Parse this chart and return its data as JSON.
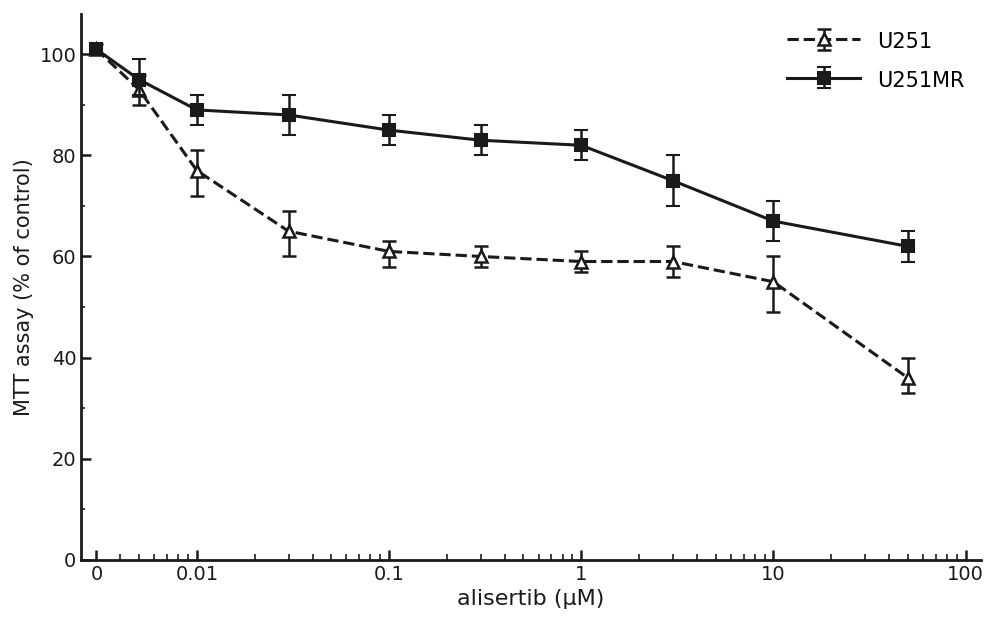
{
  "title": "",
  "xlabel": "alisertib (μM)",
  "ylabel": "MTT assay (% of control)",
  "ylim": [
    0,
    108
  ],
  "yticks": [
    0,
    20,
    40,
    60,
    80,
    100
  ],
  "background_color": "#ffffff",
  "U251_x": [
    0.003,
    0.005,
    0.01,
    0.03,
    0.1,
    0.3,
    1.0,
    3.0,
    10.0,
    50.0
  ],
  "U251_y": [
    101,
    93,
    77,
    65,
    61,
    60,
    59,
    59,
    55,
    36
  ],
  "U251_yerr_low": [
    1,
    3,
    5,
    5,
    3,
    2,
    2,
    3,
    6,
    3
  ],
  "U251_yerr_high": [
    1,
    3,
    4,
    4,
    2,
    2,
    2,
    3,
    5,
    4
  ],
  "U251MR_x": [
    0.003,
    0.005,
    0.01,
    0.03,
    0.1,
    0.3,
    1.0,
    3.0,
    10.0,
    50.0
  ],
  "U251MR_y": [
    101,
    95,
    89,
    88,
    85,
    83,
    82,
    75,
    67,
    62
  ],
  "U251MR_yerr_low": [
    1,
    3,
    3,
    4,
    3,
    3,
    3,
    5,
    4,
    3
  ],
  "U251MR_yerr_high": [
    1,
    4,
    3,
    4,
    3,
    3,
    3,
    5,
    4,
    3
  ],
  "xtick_positions": [
    0.003,
    0.01,
    0.1,
    1.0,
    10.0,
    100.0
  ],
  "xtick_labels": [
    "0",
    "0.01",
    "0.1",
    "1",
    "10",
    "100"
  ],
  "line_color": "#1a1a1a",
  "linewidth": 2.2,
  "markersize": 8,
  "capsize": 5,
  "capthick": 1.8,
  "elinewidth": 1.8
}
